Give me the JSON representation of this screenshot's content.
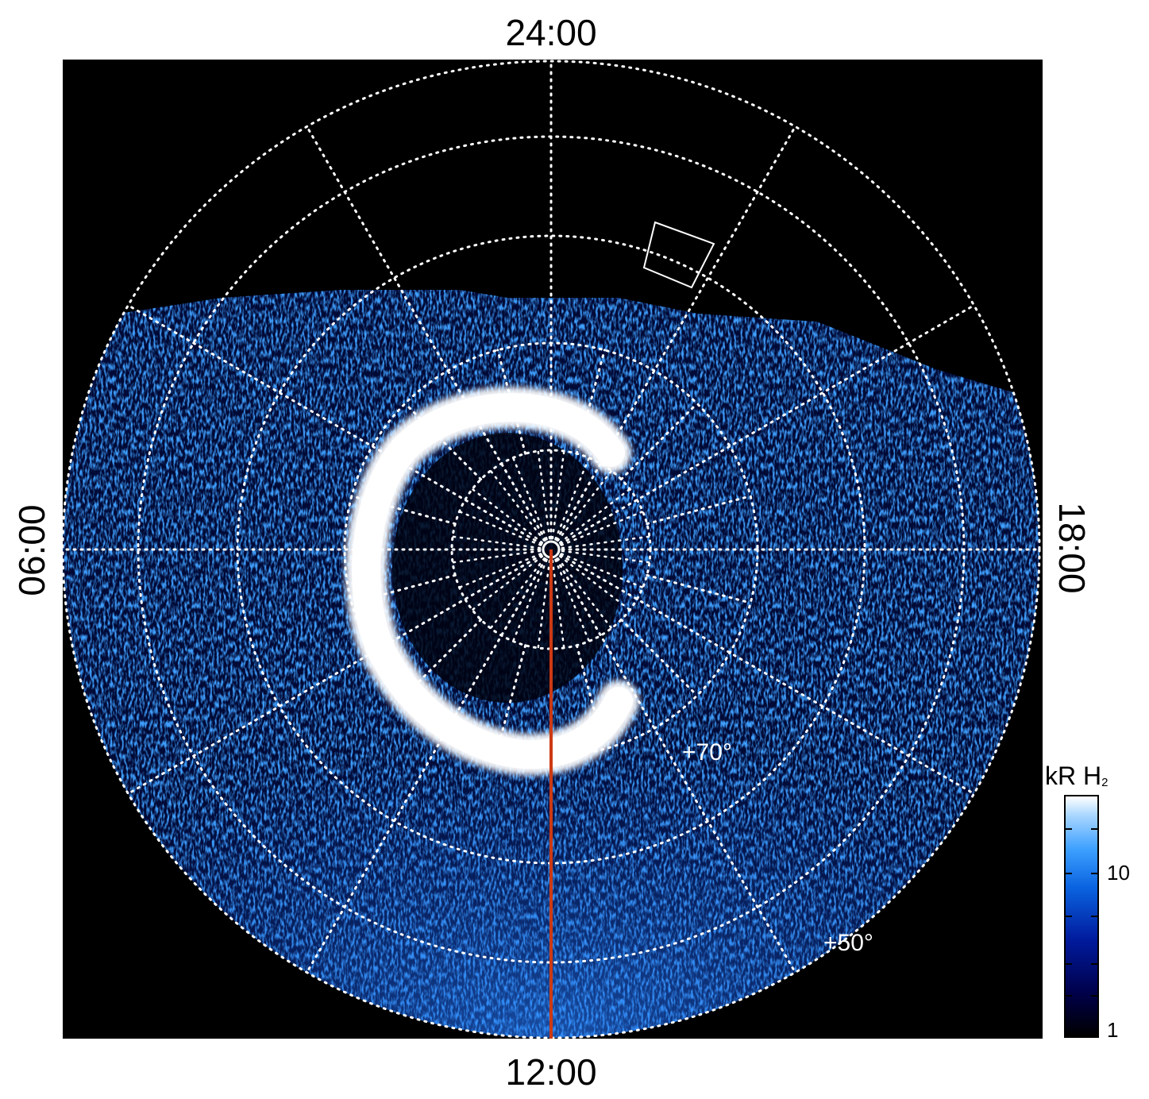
{
  "local_time_labels": {
    "top": "24:00",
    "bottom": "12:00",
    "left": "06:00",
    "right": "18:00"
  },
  "latitude_labels": {
    "inner": "+70°",
    "outer": "+50°"
  },
  "colorbar": {
    "title": "kR H",
    "title_subscript": "2",
    "tick_labels": [
      "10",
      "1"
    ],
    "scale": "log",
    "colors": [
      "#000000",
      "#00004a",
      "#001a9c",
      "#0a63e0",
      "#3da0ff",
      "#a8d6ff",
      "#ffffff"
    ]
  },
  "colors": {
    "background": "#000000",
    "grid": "#ffffff",
    "meridian_line": "#cc3a14",
    "auroral_oval": "#ffffff"
  }
}
